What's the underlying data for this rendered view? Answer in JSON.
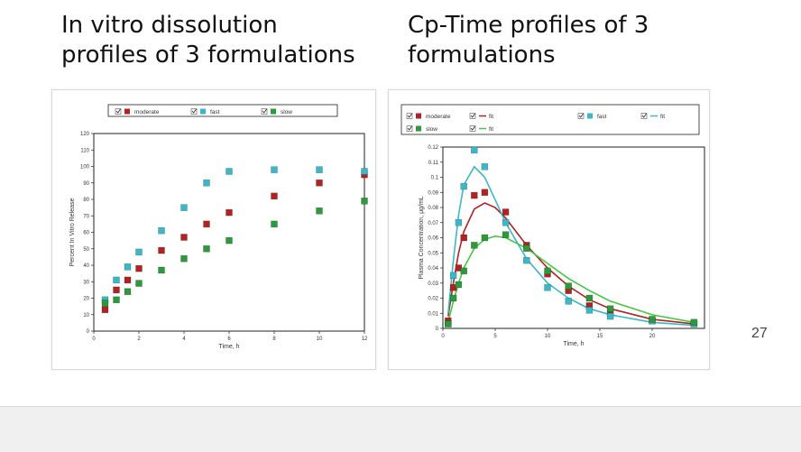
{
  "titles": {
    "left": "In vitro dissolution\nprofiles of 3 formulations",
    "right": "Cp-Time profiles of 3\nformulations"
  },
  "page_number": "27",
  "colors": {
    "moderate": "#b22222",
    "fast": "#3ab8c8",
    "slow": "#2a9a3a"
  },
  "chart_data": [
    {
      "type": "scatter",
      "xlabel": "Time, h",
      "ylabel": "Percent In Vitro Release",
      "xlim": [
        0,
        12
      ],
      "ylim": [
        0,
        120
      ],
      "xticks": [
        0,
        2,
        4,
        6,
        8,
        10,
        12
      ],
      "yticks": [
        0,
        10,
        20,
        30,
        40,
        50,
        60,
        70,
        80,
        90,
        100,
        110,
        120
      ],
      "legend": "top",
      "series": [
        {
          "name": "moderate",
          "color": "#b22222",
          "x": [
            0.5,
            1,
            1.5,
            2,
            3,
            4,
            5,
            6,
            8,
            10,
            12
          ],
          "y": [
            13,
            25,
            31,
            38,
            49,
            57,
            65,
            72,
            82,
            90,
            95
          ]
        },
        {
          "name": "fast",
          "color": "#3ab8c8",
          "x": [
            0.5,
            1,
            1.5,
            2,
            3,
            4,
            5,
            6,
            8,
            10,
            12
          ],
          "y": [
            19,
            31,
            39,
            48,
            61,
            75,
            90,
            97,
            98,
            98,
            97
          ]
        },
        {
          "name": "slow",
          "color": "#2a9a3a",
          "x": [
            0.5,
            1,
            1.5,
            2,
            3,
            4,
            5,
            6,
            8,
            10,
            12
          ],
          "y": [
            17,
            19,
            24,
            29,
            37,
            44,
            50,
            55,
            65,
            73,
            79
          ]
        }
      ]
    },
    {
      "type": "scatter",
      "xlabel": "Time, h",
      "ylabel": "Plasma Concentration, μg/mL",
      "xlim": [
        0,
        25
      ],
      "ylim": [
        0,
        0.12
      ],
      "xticks": [
        0,
        5,
        10,
        15,
        20
      ],
      "yticks": [
        0,
        0.01,
        0.02,
        0.03,
        0.04,
        0.05,
        0.06,
        0.07,
        0.08,
        0.09,
        0.1,
        0.11,
        0.12
      ],
      "legend": "top",
      "series": [
        {
          "name": "moderate",
          "color": "#b22222",
          "x": [
            0.5,
            1,
            1.5,
            2,
            3,
            4,
            6,
            8,
            10,
            12,
            14,
            16,
            20,
            24
          ],
          "y": [
            0.005,
            0.027,
            0.04,
            0.06,
            0.088,
            0.09,
            0.077,
            0.055,
            0.036,
            0.025,
            0.015,
            0.01,
            0.005,
            0.003
          ]
        },
        {
          "name": "fast",
          "color": "#3ab8c8",
          "x": [
            0.5,
            1,
            1.5,
            2,
            3,
            4,
            6,
            8,
            10,
            12,
            14,
            16,
            20,
            24
          ],
          "y": [
            0.003,
            0.035,
            0.07,
            0.094,
            0.118,
            0.107,
            0.07,
            0.045,
            0.027,
            0.018,
            0.012,
            0.008,
            0.005,
            0.003
          ]
        },
        {
          "name": "slow",
          "color": "#2a9a3a",
          "x": [
            0.5,
            1,
            1.5,
            2,
            3,
            4,
            6,
            8,
            10,
            12,
            14,
            16,
            20,
            24
          ],
          "y": [
            0.003,
            0.02,
            0.029,
            0.038,
            0.055,
            0.06,
            0.062,
            0.053,
            0.038,
            0.028,
            0.02,
            0.013,
            0.006,
            0.004
          ]
        }
      ],
      "fits": [
        {
          "name": "fit",
          "color": "#b22222",
          "x": [
            0.5,
            1,
            1.5,
            2,
            3,
            4,
            5,
            6,
            8,
            10,
            12,
            14,
            16,
            20,
            24
          ],
          "y": [
            0.008,
            0.03,
            0.05,
            0.064,
            0.079,
            0.083,
            0.08,
            0.073,
            0.055,
            0.04,
            0.028,
            0.019,
            0.013,
            0.006,
            0.003
          ]
        },
        {
          "name": "fit",
          "color": "#3ab8c8",
          "x": [
            0.5,
            1,
            1.5,
            2,
            3,
            4,
            5,
            6,
            8,
            10,
            12,
            14,
            16,
            20,
            24
          ],
          "y": [
            0.01,
            0.045,
            0.075,
            0.095,
            0.107,
            0.1,
            0.085,
            0.07,
            0.046,
            0.03,
            0.02,
            0.013,
            0.009,
            0.004,
            0.002
          ]
        },
        {
          "name": "fit",
          "color": "#44c840",
          "x": [
            0.5,
            1,
            1.5,
            2,
            3,
            4,
            5,
            6,
            8,
            10,
            12,
            14,
            16,
            20,
            24
          ],
          "y": [
            0.004,
            0.018,
            0.03,
            0.04,
            0.053,
            0.059,
            0.061,
            0.06,
            0.053,
            0.043,
            0.033,
            0.025,
            0.018,
            0.009,
            0.004
          ]
        }
      ]
    }
  ]
}
